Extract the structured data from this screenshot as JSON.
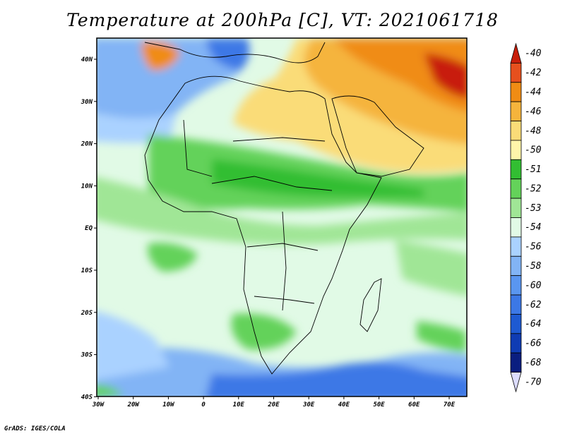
{
  "title": "Temperature at 200hPa [C], VT: 2021061718",
  "credit": "GrADS: IGES/COLA",
  "map": {
    "lon_range": [
      -30,
      75
    ],
    "lat_range": [
      -40,
      45
    ],
    "lon_ticks": [
      "30W",
      "20W",
      "10W",
      "0",
      "10E",
      "20E",
      "30E",
      "40E",
      "50E",
      "60E",
      "70E"
    ],
    "lat_ticks": [
      "40N",
      "30N",
      "20N",
      "10N",
      "EQ",
      "10S",
      "20S",
      "30S",
      "40S"
    ]
  },
  "colorbar": {
    "labels": [
      "-40",
      "-42",
      "-44",
      "-46",
      "-48",
      "-50",
      "-51",
      "-52",
      "-53",
      "-54",
      "-56",
      "-58",
      "-60",
      "-62",
      "-64",
      "-66",
      "-68",
      "-70"
    ],
    "colors": [
      "#c81e0a",
      "#e6501e",
      "#f08c14",
      "#f5b43c",
      "#fadc78",
      "#fff5aa",
      "#32be32",
      "#64d25a",
      "#a0e696",
      "#e1fae6",
      "#aad2ff",
      "#82b4f5",
      "#5a96f0",
      "#3c78e6",
      "#1e5ad2",
      "#0f3cb4",
      "#0a1e80",
      "#dcdcff"
    ]
  },
  "colors": {
    "red": "#c81e0a",
    "orange": "#f08c14",
    "yellow": "#fadc78",
    "green": "#64d25a",
    "lightgreen": "#a0e696",
    "paleblue": "#e1fae6",
    "blue": "#5a96f0",
    "darkblue": "#1e5ad2"
  }
}
